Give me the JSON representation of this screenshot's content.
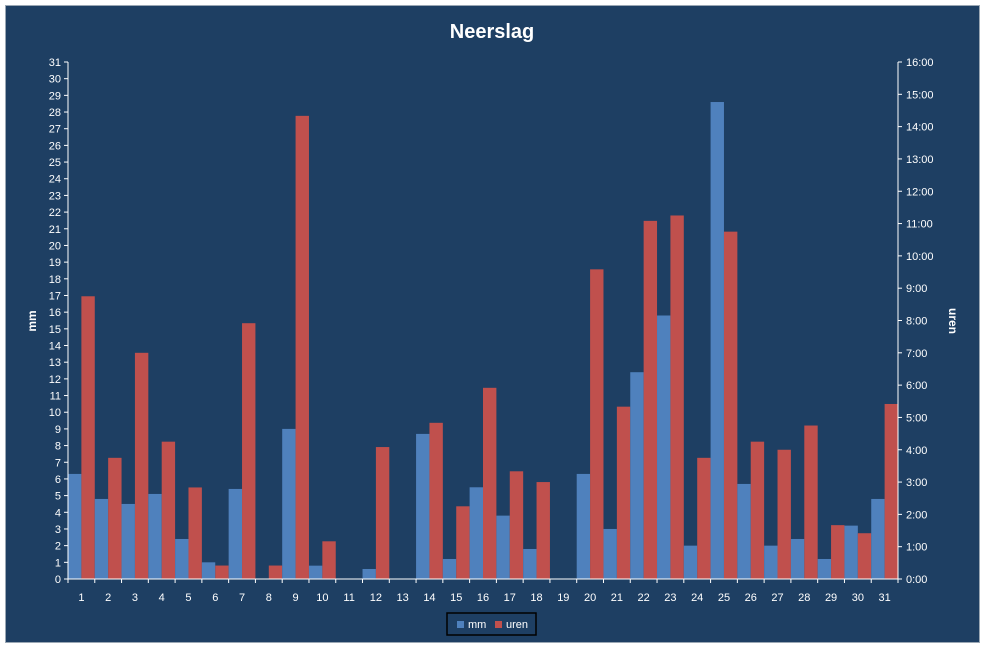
{
  "chart_data": {
    "type": "bar",
    "title": "Neerslag",
    "ylabel": "mm",
    "y2label": "uren",
    "categories": [
      "1",
      "2",
      "3",
      "4",
      "5",
      "6",
      "7",
      "8",
      "9",
      "10",
      "11",
      "12",
      "13",
      "14",
      "15",
      "16",
      "17",
      "18",
      "19",
      "20",
      "21",
      "22",
      "23",
      "24",
      "25",
      "26",
      "27",
      "28",
      "29",
      "30",
      "31"
    ],
    "series": [
      {
        "name": "mm",
        "axis": "left",
        "color": "#4f81bd",
        "values": [
          6.3,
          4.8,
          4.5,
          5.1,
          2.4,
          1.0,
          5.4,
          0.0,
          9.0,
          0.8,
          0.0,
          0.6,
          0.0,
          8.7,
          1.2,
          5.5,
          3.8,
          1.8,
          0.0,
          6.3,
          3.0,
          12.4,
          15.8,
          2.0,
          28.6,
          5.7,
          2.0,
          2.4,
          1.2,
          3.2,
          4.8
        ]
      },
      {
        "name": "uren",
        "axis": "right",
        "color": "#c0504d",
        "values": [
          "8:45",
          "3:45",
          "7:00",
          "4:15",
          "2:50",
          "0:25",
          "7:55",
          "0:25",
          "14:20",
          "1:10",
          "0:00",
          "4:05",
          "0:00",
          "4:50",
          "2:15",
          "5:55",
          "3:20",
          "3:00",
          "0:00",
          "9:35",
          "5:20",
          "11:05",
          "11:15",
          "3:45",
          "10:45",
          "4:15",
          "4:00",
          "4:45",
          "1:40",
          "1:25",
          "5:25"
        ]
      }
    ],
    "ylim": [
      0,
      31
    ],
    "yticks": [
      "0",
      "1",
      "2",
      "3",
      "4",
      "5",
      "6",
      "7",
      "8",
      "9",
      "10",
      "11",
      "12",
      "13",
      "14",
      "15",
      "16",
      "17",
      "18",
      "19",
      "20",
      "21",
      "22",
      "23",
      "24",
      "25",
      "26",
      "27",
      "28",
      "29",
      "30",
      "31"
    ],
    "y2lim": [
      "0:00",
      "16:00"
    ],
    "y2ticks": [
      "0:00",
      "1:00",
      "2:00",
      "3:00",
      "4:00",
      "5:00",
      "6:00",
      "7:00",
      "8:00",
      "9:00",
      "10:00",
      "11:00",
      "12:00",
      "13:00",
      "14:00",
      "15:00",
      "16:00"
    ],
    "legend_position": "bottom-center",
    "colors": {
      "background": "#1e3f63",
      "text": "#ffffff"
    }
  }
}
